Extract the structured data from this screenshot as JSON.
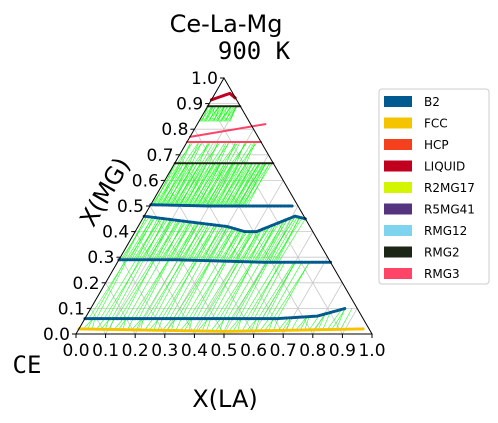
{
  "chart_data": {
    "type": "scatter",
    "plot_kind": "ternary isothermal section",
    "title": "Ce-La-Mg",
    "subtitle": "900 K",
    "xlabel": "X(LA)",
    "ylabel": "X(MG)",
    "origin_label": "CE",
    "xlim": [
      0.0,
      1.0
    ],
    "ylim": [
      0.0,
      1.0
    ],
    "x_ticks": [
      "0.0",
      "0.1",
      "0.2",
      "0.3",
      "0.4",
      "0.5",
      "0.6",
      "0.7",
      "0.8",
      "0.9",
      "1.0"
    ],
    "y_ticks": [
      "0.0",
      "0.1",
      "0.2",
      "0.3",
      "0.4",
      "0.5",
      "0.6",
      "0.7",
      "0.8",
      "0.9",
      "1.0"
    ],
    "grid": true,
    "legend_position": "right",
    "legend": [
      {
        "name": "B2",
        "color": "#005a8f"
      },
      {
        "name": "FCC",
        "color": "#f5c400"
      },
      {
        "name": "HCP",
        "color": "#f4401c"
      },
      {
        "name": "LIQUID",
        "color": "#c0001e"
      },
      {
        "name": "R2MG17",
        "color": "#d4f500"
      },
      {
        "name": "R5MG41",
        "color": "#55337f"
      },
      {
        "name": "RMG12",
        "color": "#7ed3ee"
      },
      {
        "name": "RMG2",
        "color": "#1c2616"
      },
      {
        "name": "RMG3",
        "color": "#ff4468"
      }
    ],
    "tie_line_color": "#00ff00",
    "phase_boundaries": [
      {
        "phase": "FCC",
        "points": [
          [
            0.0,
            0.02
          ],
          [
            0.5,
            0.01
          ],
          [
            0.96,
            0.02
          ]
        ]
      },
      {
        "phase": "B2",
        "points": [
          [
            0.0,
            0.06
          ],
          [
            0.35,
            0.06
          ],
          [
            0.5,
            0.06
          ],
          [
            0.65,
            0.06
          ],
          [
            0.78,
            0.07
          ],
          [
            0.86,
            0.1
          ]
        ]
      },
      {
        "phase": "B2",
        "points": [
          [
            0.0,
            0.29
          ],
          [
            0.2,
            0.29
          ],
          [
            0.5,
            0.28
          ],
          [
            0.72,
            0.28
          ]
        ]
      },
      {
        "phase": "B2",
        "points": [
          [
            0.0,
            0.46
          ],
          [
            0.15,
            0.44
          ],
          [
            0.3,
            0.42
          ],
          [
            0.37,
            0.4
          ],
          [
            0.41,
            0.4
          ],
          [
            0.46,
            0.43
          ],
          [
            0.51,
            0.46
          ],
          [
            0.55,
            0.45
          ]
        ]
      },
      {
        "phase": "B2",
        "points": [
          [
            0.0,
            0.505
          ],
          [
            0.2,
            0.5
          ],
          [
            0.4,
            0.5
          ],
          [
            0.48,
            0.5
          ]
        ]
      },
      {
        "phase": "RMG2",
        "points": [
          [
            0.0,
            0.667
          ],
          [
            0.333,
            0.667
          ]
        ]
      },
      {
        "phase": "RMG3",
        "points": [
          [
            0.0,
            0.75
          ],
          [
            0.25,
            0.75
          ]
        ]
      },
      {
        "phase": "RMG3",
        "points": [
          [
            0.0,
            0.77
          ],
          [
            0.23,
            0.82
          ]
        ]
      },
      {
        "phase": "RMG2",
        "points": [
          [
            0.0,
            0.89
          ],
          [
            0.11,
            0.89
          ]
        ]
      },
      {
        "phase": "LIQUID",
        "points": [
          [
            0.0,
            0.915
          ],
          [
            0.05,
            0.94
          ],
          [
            0.08,
            0.92
          ]
        ]
      }
    ]
  }
}
